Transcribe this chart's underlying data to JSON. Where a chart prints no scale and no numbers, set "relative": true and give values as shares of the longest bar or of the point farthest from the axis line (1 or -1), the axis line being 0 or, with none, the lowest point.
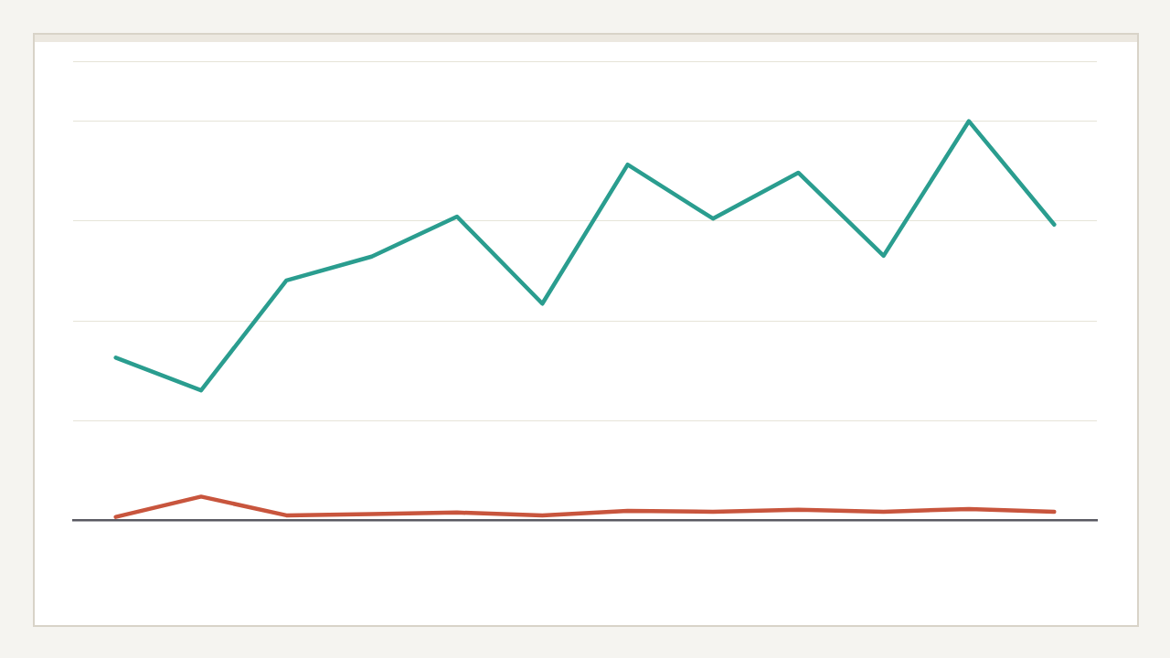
{
  "chart_data": {
    "type": "line",
    "relative": true,
    "grid": "y",
    "legend": false,
    "marker": "none",
    "line_style": "solid",
    "categories": [
      null,
      null,
      null,
      null,
      null,
      null,
      null,
      null,
      null,
      null,
      null,
      null
    ],
    "series": [
      {
        "color": "#2a9d8f",
        "values": [
          0.408,
          0.326,
          0.601,
          0.661,
          0.761,
          0.543,
          0.891,
          0.756,
          0.871,
          0.663,
          1,
          0.741
        ]
      },
      {
        "color": "#c8553d",
        "values": [
          0.009,
          0.06,
          0.013,
          0.016,
          0.02,
          0.013,
          0.024,
          0.022,
          0.027,
          0.022,
          0.029,
          0.022
        ]
      }
    ]
  }
}
